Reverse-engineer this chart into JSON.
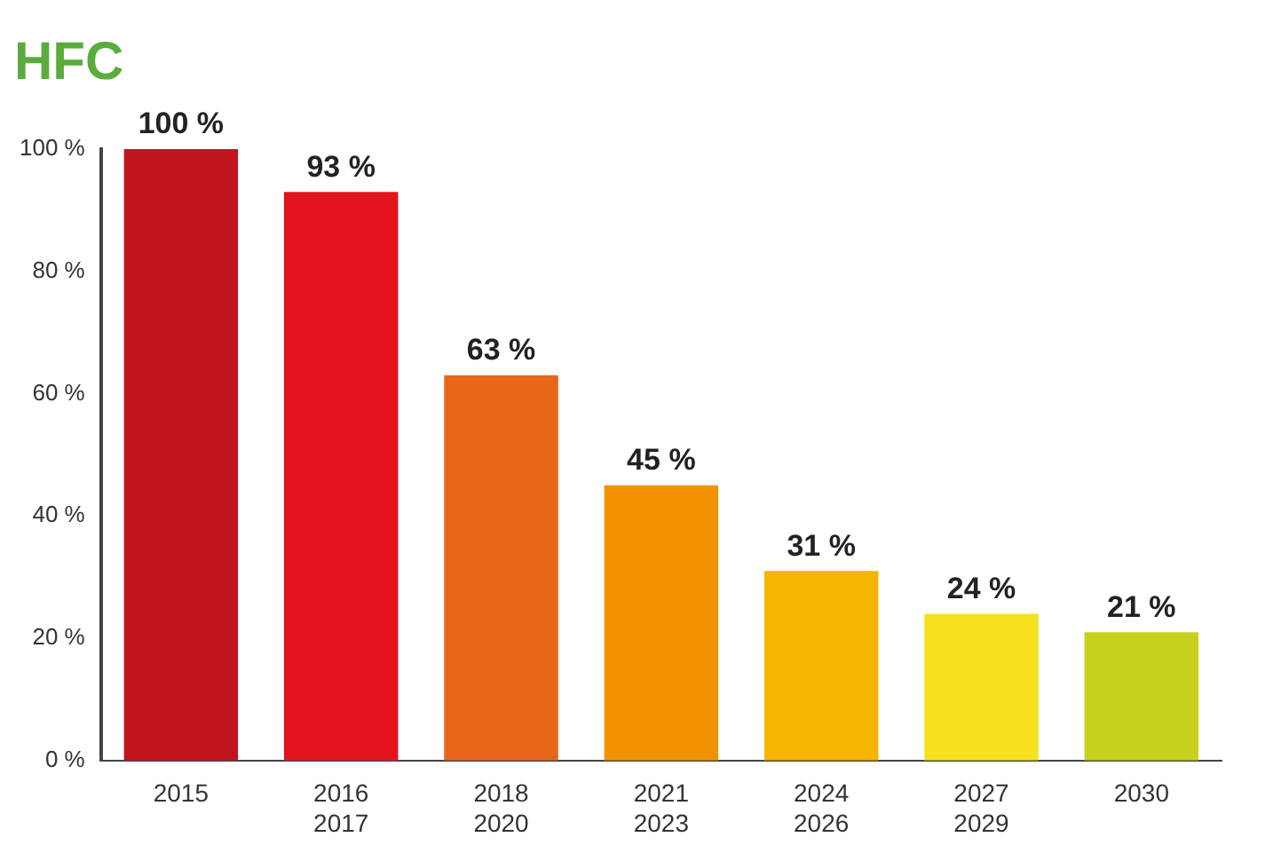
{
  "chart_data": {
    "type": "bar",
    "title": "HFC",
    "categories": [
      "2015",
      "2016\n2017",
      "2018\n2020",
      "2021\n2023",
      "2024\n2026",
      "2027\n2029",
      "2030"
    ],
    "values": [
      100,
      93,
      63,
      45,
      31,
      24,
      21
    ],
    "colors": [
      "#c0141e",
      "#e3141e",
      "#e8661a",
      "#f39200",
      "#f7b500",
      "#f5e11e",
      "#c8d21e"
    ],
    "value_labels": [
      "100 %",
      "93 %",
      "63 %",
      "45 %",
      "31 %",
      "24 %",
      "21 %"
    ],
    "ylim": [
      0,
      100
    ],
    "yticks": [
      {
        "value": 0,
        "label": "0 %"
      },
      {
        "value": 20,
        "label": "20 %"
      },
      {
        "value": 40,
        "label": "40 %"
      },
      {
        "value": 60,
        "label": "60 %"
      },
      {
        "value": 80,
        "label": "80 %"
      },
      {
        "value": 100,
        "label": "100 %"
      }
    ],
    "grid": false
  }
}
